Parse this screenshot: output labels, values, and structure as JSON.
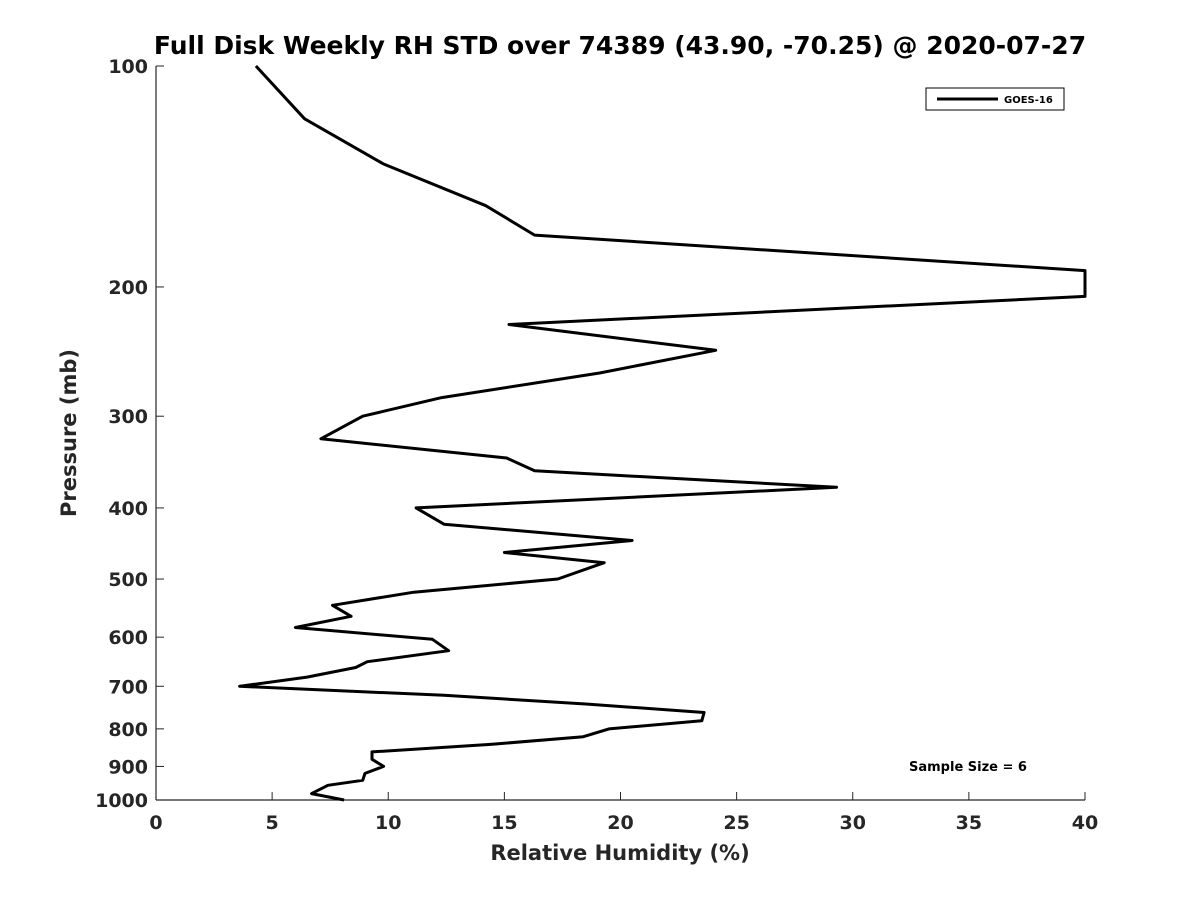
{
  "chart_data": {
    "type": "line",
    "title": "Full Disk Weekly RH STD over 74389 (43.90, -70.25) @ 2020-07-27",
    "xlabel": "Relative Humidity (%)",
    "ylabel": "Pressure (mb)",
    "xlim": [
      0,
      40
    ],
    "ylim": [
      100,
      1000
    ],
    "y_scale": "log",
    "y_reversed": true,
    "grid": false,
    "x_ticks": [
      "0",
      "5",
      "10",
      "15",
      "20",
      "25",
      "30",
      "35",
      "40"
    ],
    "y_ticks": [
      "100",
      "200",
      "300",
      "400",
      "500",
      "600",
      "700",
      "800",
      "900",
      "1000"
    ],
    "legend_position": "top-right",
    "annotation": "Sample Size = 6",
    "series": [
      {
        "name": "GOES-16",
        "color": "#000000",
        "points": [
          [
            4.3,
            100
          ],
          [
            6.4,
            118
          ],
          [
            9.8,
            136
          ],
          [
            14.2,
            155
          ],
          [
            16.3,
            170
          ],
          [
            40.0,
            190
          ],
          [
            40.0,
            206
          ],
          [
            15.2,
            225
          ],
          [
            24.1,
            244
          ],
          [
            19.1,
            262
          ],
          [
            12.3,
            283
          ],
          [
            8.9,
            300
          ],
          [
            7.1,
            322
          ],
          [
            15.1,
            342
          ],
          [
            16.3,
            356
          ],
          [
            29.3,
            375
          ],
          [
            11.2,
            400
          ],
          [
            12.4,
            421
          ],
          [
            20.5,
            443
          ],
          [
            15.0,
            460
          ],
          [
            19.3,
            475
          ],
          [
            17.3,
            500
          ],
          [
            11.1,
            521
          ],
          [
            7.6,
            543
          ],
          [
            8.4,
            562
          ],
          [
            6.0,
            582
          ],
          [
            11.9,
            604
          ],
          [
            12.6,
            626
          ],
          [
            9.1,
            648
          ],
          [
            8.6,
            660
          ],
          [
            6.5,
            680
          ],
          [
            3.6,
            700
          ],
          [
            12.4,
            720
          ],
          [
            18.5,
            740
          ],
          [
            23.6,
            760
          ],
          [
            23.5,
            780
          ],
          [
            19.5,
            800
          ],
          [
            18.4,
            820
          ],
          [
            14.4,
            840
          ],
          [
            9.3,
            860
          ],
          [
            9.3,
            880
          ],
          [
            9.8,
            900
          ],
          [
            9.0,
            920
          ],
          [
            8.9,
            940
          ],
          [
            7.4,
            955
          ],
          [
            6.7,
            980
          ],
          [
            8.1,
            1000
          ]
        ]
      }
    ]
  }
}
